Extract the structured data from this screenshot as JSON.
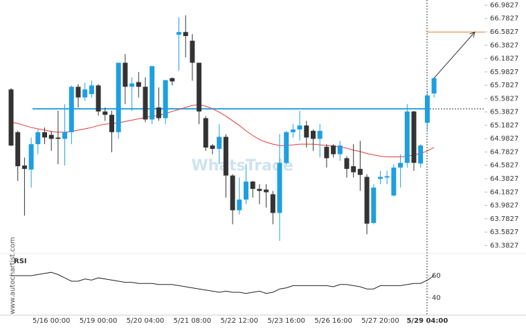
{
  "chart_data": {
    "type": "candlestick",
    "watermark": "WhatsTrade",
    "site": "www.autochartist.com",
    "categories": [
      null,
      null,
      null,
      null,
      null,
      null,
      "5/16 00:00",
      null,
      null,
      null,
      null,
      null,
      null,
      "5/19 00:00",
      null,
      null,
      null,
      null,
      null,
      null,
      "5/20 04:00",
      null,
      null,
      null,
      null,
      null,
      null,
      "5/21 08:00",
      null,
      null,
      null,
      null,
      null,
      null,
      "5/22 12:00",
      null,
      null,
      null,
      null,
      null,
      null,
      "5/23 16:00",
      null,
      null,
      null,
      null,
      null,
      null,
      "5/26 16:00",
      null,
      null,
      null,
      null,
      null,
      null,
      "5/27 20:00",
      null,
      null,
      null,
      null,
      null,
      null,
      "5/29 04:00",
      null
    ],
    "open": [
      65.72,
      65.08,
      64.58,
      64.52,
      64.9,
      65.08,
      65.04,
      65.0,
      64.98,
      65.08,
      65.76,
      65.6,
      65.65,
      65.78,
      65.39,
      65.34,
      65.08,
      66.12,
      65.76,
      65.83,
      65.76,
      65.27,
      65.45,
      65.29,
      65.89,
      66.54,
      66.58,
      66.45,
      66.12,
      65.29,
      64.88,
      64.83,
      65.01,
      64.43,
      63.91,
      64.07,
      64.34,
      64.23,
      64.22,
      64.15,
      63.87,
      64.62,
      65.08,
      65.12,
      65.18,
      65.1,
      64.98,
      64.86,
      64.88,
      64.75,
      64.69,
      64.57,
      64.53,
      64.41,
      63.72,
      64.38,
      64.4,
      64.13,
      64.55,
      64.62,
      65.39,
      64.61,
      65.22,
      65.66
    ],
    "high": [
      65.74,
      65.1,
      64.7,
      65.0,
      65.12,
      65.15,
      65.1,
      65.4,
      65.5,
      65.78,
      65.8,
      65.82,
      65.85,
      65.8,
      65.45,
      65.4,
      66.12,
      66.25,
      65.9,
      65.98,
      65.9,
      66.07,
      65.75,
      65.86,
      65.9,
      66.8,
      66.83,
      66.55,
      66.12,
      65.32,
      64.9,
      65.2,
      65.05,
      64.45,
      64.4,
      64.6,
      64.35,
      64.3,
      64.3,
      64.2,
      65.05,
      65.1,
      65.2,
      65.4,
      65.25,
      65.12,
      65.2,
      64.9,
      64.9,
      64.95,
      64.72,
      64.9,
      64.95,
      64.45,
      64.3,
      64.5,
      64.5,
      64.6,
      64.75,
      65.5,
      65.4,
      64.9,
      65.7,
      65.9
    ],
    "low": [
      64.87,
      64.35,
      63.83,
      64.25,
      64.75,
      64.9,
      64.8,
      64.6,
      64.58,
      64.9,
      65.45,
      65.55,
      65.6,
      65.33,
      65.25,
      64.78,
      64.98,
      65.5,
      65.4,
      65.6,
      65.23,
      65.2,
      65.25,
      65.2,
      65.78,
      66.0,
      66.2,
      65.85,
      65.2,
      64.8,
      64.75,
      64.6,
      64.1,
      63.7,
      63.85,
      64.0,
      64.1,
      64.0,
      63.95,
      63.7,
      63.45,
      64.6,
      65.0,
      64.95,
      64.85,
      64.8,
      64.7,
      64.55,
      64.7,
      64.65,
      64.4,
      64.4,
      64.2,
      63.55,
      63.7,
      64.3,
      64.3,
      64.12,
      64.25,
      64.55,
      64.5,
      64.55,
      65.1,
      65.6
    ],
    "close": [
      64.88,
      64.57,
      64.53,
      64.9,
      65.08,
      65.0,
      64.98,
      64.98,
      65.08,
      65.76,
      65.6,
      65.72,
      65.78,
      65.39,
      65.34,
      65.08,
      66.12,
      65.76,
      65.81,
      65.76,
      65.27,
      66.07,
      65.29,
      65.86,
      65.84,
      66.58,
      66.52,
      66.12,
      65.39,
      64.85,
      64.83,
      65.01,
      64.43,
      63.91,
      64.07,
      64.34,
      64.23,
      64.2,
      64.18,
      63.87,
      64.62,
      65.08,
      65.12,
      65.18,
      65.0,
      64.98,
      65.1,
      64.69,
      64.75,
      64.88,
      64.53,
      64.48,
      64.44,
      63.71,
      64.25,
      64.41,
      64.42,
      64.55,
      64.62,
      65.39,
      64.62,
      64.88,
      65.63,
      65.89
    ],
    "up_color": "#1e9fe0",
    "down_color": "#333333",
    "ma": {
      "color": "#e53935",
      "values": [
        65.23,
        65.21,
        65.18,
        65.15,
        65.13,
        65.11,
        65.09,
        65.08,
        65.08,
        65.09,
        65.11,
        65.13,
        65.15,
        65.18,
        65.2,
        65.21,
        65.22,
        65.24,
        65.26,
        65.28,
        65.3,
        65.32,
        65.33,
        65.36,
        65.39,
        65.42,
        65.45,
        65.48,
        65.49,
        65.47,
        65.43,
        65.38,
        65.32,
        65.25,
        65.18,
        65.1,
        65.03,
        64.97,
        64.93,
        64.9,
        64.88,
        64.88,
        64.89,
        64.9,
        64.9,
        64.9,
        64.89,
        64.88,
        64.87,
        64.86,
        64.84,
        64.81,
        64.79,
        64.76,
        64.74,
        64.72,
        64.71,
        64.71,
        64.71,
        64.72,
        64.74,
        64.76,
        64.8,
        64.85
      ]
    },
    "level": {
      "value": 65.43,
      "color": "#29a3e0"
    },
    "target": {
      "value": 66.58,
      "color": "#e07b39"
    },
    "ylim": [
      63.2,
      67.06
    ],
    "yticks": [
      66.9827,
      66.7827,
      66.5827,
      66.3827,
      66.1827,
      65.9827,
      65.7827,
      65.5827,
      65.3827,
      65.1827,
      64.9827,
      64.7827,
      64.5827,
      64.3827,
      64.1827,
      63.9827,
      63.7827,
      63.5827,
      63.3827
    ],
    "rsi": {
      "label": "RSI",
      "color": "#222222",
      "ylim": [
        30,
        75
      ],
      "yticks": [
        60,
        40
      ],
      "values": [
        60,
        60,
        60,
        60,
        61,
        62,
        63,
        61,
        58,
        55,
        55,
        57,
        56,
        58,
        57,
        56,
        55,
        54,
        54,
        53,
        53,
        53,
        52,
        52,
        52,
        51,
        50,
        49,
        48,
        47,
        46,
        45,
        46,
        45,
        45,
        44,
        45,
        46,
        44,
        45,
        48,
        49,
        51,
        51,
        51,
        51,
        51,
        51,
        50,
        52,
        52,
        51,
        50,
        48,
        48,
        51,
        51,
        51,
        51,
        52,
        53,
        53,
        56,
        60
      ]
    }
  }
}
